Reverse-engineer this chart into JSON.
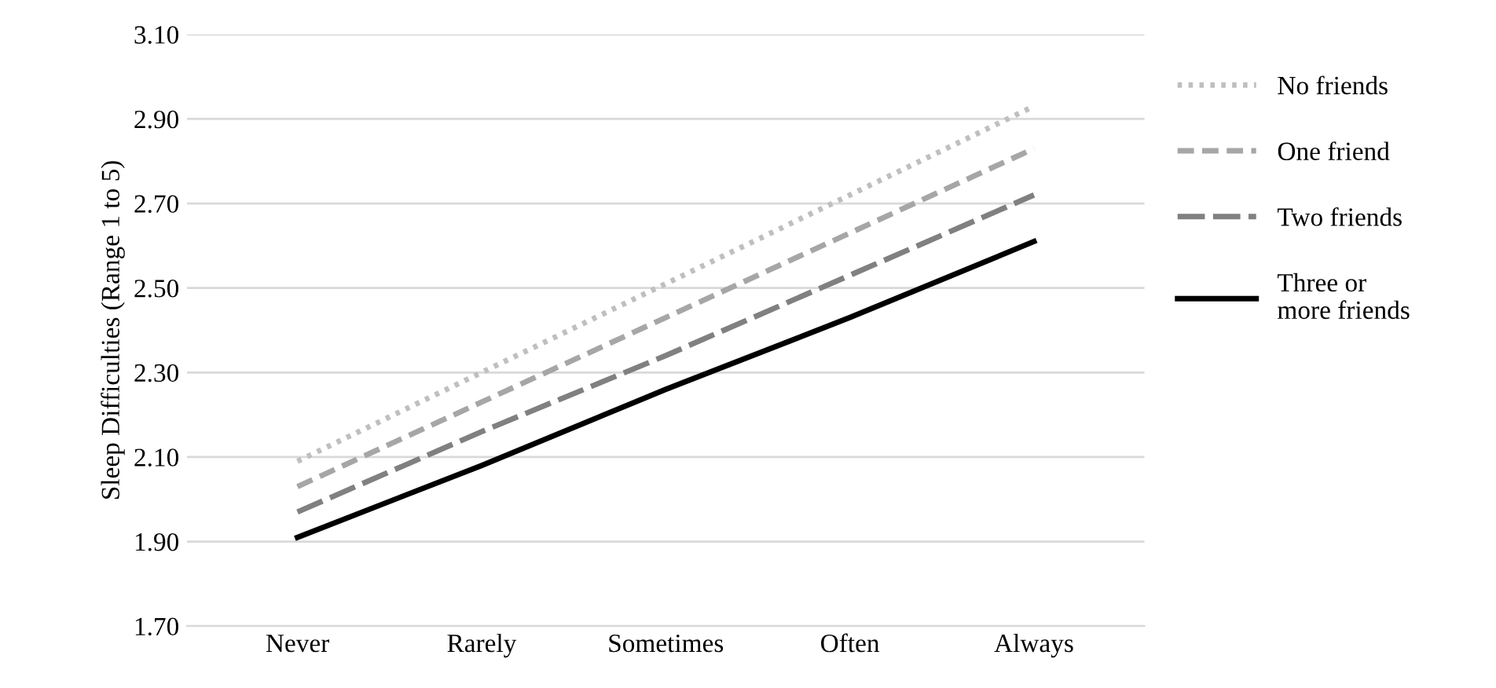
{
  "chart_data": {
    "type": "line",
    "ylabel": "Sleep Difficulties (Range 1 to 5)",
    "categories": [
      "Never",
      "Rarely",
      "Sometimes",
      "Often",
      "Always"
    ],
    "series": [
      {
        "name": "No friends",
        "color": "#bfbfbf",
        "line_style": "dotted",
        "values": [
          2.09,
          2.3,
          2.51,
          2.72,
          2.93
        ]
      },
      {
        "name": "One friend",
        "color": "#a6a6a6",
        "line_style": "dashed",
        "values": [
          2.03,
          2.23,
          2.43,
          2.63,
          2.83
        ]
      },
      {
        "name": "Two friends",
        "color": "#808080",
        "line_style": "dashed",
        "values": [
          1.97,
          2.16,
          2.34,
          2.53,
          2.72
        ]
      },
      {
        "name": "Three or\nmore friends",
        "color": "#000000",
        "line_style": "solid",
        "values": [
          1.91,
          2.08,
          2.26,
          2.43,
          2.61
        ]
      }
    ],
    "ylim": [
      1.7,
      3.1
    ],
    "yticks": [
      {
        "value": 1.7,
        "label": "1.70"
      },
      {
        "value": 1.9,
        "label": "1.90"
      },
      {
        "value": 2.1,
        "label": "2.10"
      },
      {
        "value": 2.3,
        "label": "2.30"
      },
      {
        "value": 2.5,
        "label": "2.50"
      },
      {
        "value": 2.7,
        "label": "2.70"
      },
      {
        "value": 2.9,
        "label": "2.90"
      },
      {
        "value": 3.1,
        "label": "3.10"
      }
    ],
    "grid": "y",
    "legend": "right",
    "marker": "none"
  }
}
